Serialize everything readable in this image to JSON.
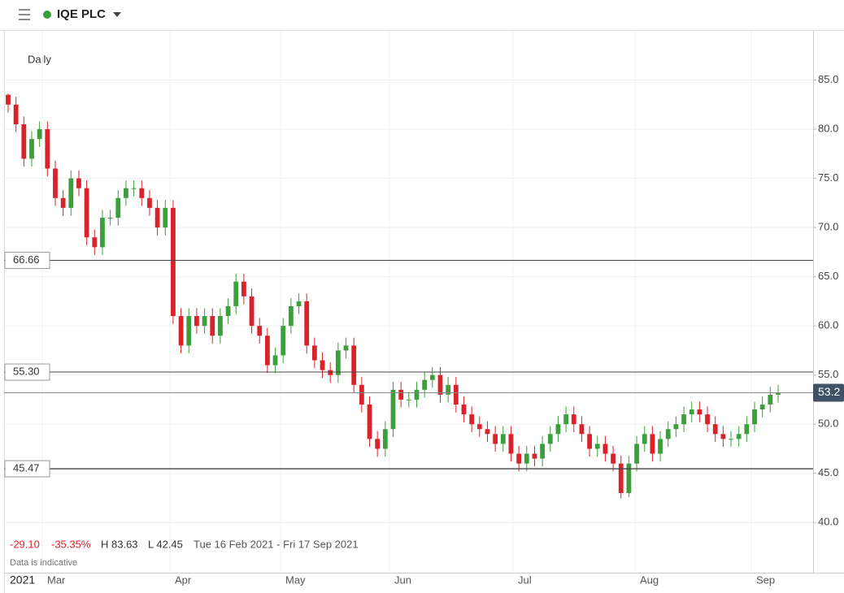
{
  "header": {
    "title": "IQE PLC"
  },
  "chart_data": {
    "type": "candlestick",
    "interval": "Daily",
    "up_color": "#3c9e3c",
    "down_color": "#d9232a",
    "open": [
      83.5,
      82.5,
      80.5,
      77,
      79,
      80,
      76,
      73,
      72,
      75,
      74,
      69,
      68,
      71,
      71,
      73,
      74,
      74,
      73,
      72,
      70,
      72,
      61,
      58,
      61,
      60,
      61,
      59,
      61,
      62,
      64.5,
      63,
      60,
      59,
      56,
      57,
      60,
      62,
      62.5,
      58,
      56.5,
      55.5,
      55,
      57.5,
      58,
      54,
      52,
      48.5,
      47.5,
      49.5,
      53.5,
      52.5,
      52.5,
      53.5,
      54.5,
      55,
      53,
      54,
      52,
      51,
      50,
      49.5,
      49,
      48,
      49,
      47,
      46,
      47,
      46.5,
      48,
      49,
      50,
      51,
      50,
      49,
      47.5,
      48,
      47,
      46,
      43,
      46,
      48,
      49,
      47,
      48.5,
      49.5,
      50,
      51,
      51.5,
      51,
      50,
      49,
      48.5,
      48.5,
      49,
      50,
      51.5,
      52,
      53
    ],
    "high": [
      83.63,
      83.3,
      81.3,
      79.8,
      80.8,
      80.8,
      76.8,
      73.8,
      75.8,
      75.8,
      74.8,
      69.8,
      71.8,
      71.8,
      73.8,
      74.8,
      74.8,
      74.8,
      73.8,
      72.8,
      72.8,
      72.8,
      61.8,
      61.8,
      61.8,
      61.8,
      61.8,
      61.8,
      62.8,
      65.3,
      65.3,
      63.8,
      60.8,
      59.8,
      57.8,
      60.8,
      62.8,
      63.3,
      63.3,
      58.8,
      57.3,
      56.3,
      58.3,
      58.8,
      58.8,
      54.8,
      52.8,
      49.3,
      50.3,
      54.3,
      54.3,
      53.3,
      54.3,
      55.3,
      55.8,
      55.8,
      54.8,
      54.8,
      52.8,
      51.8,
      50.8,
      50.3,
      49.8,
      49.8,
      49.8,
      47.8,
      47.8,
      47.8,
      48.8,
      49.8,
      50.8,
      51.8,
      51.8,
      50.8,
      49.8,
      48.8,
      48.8,
      47.8,
      46.8,
      46.8,
      48.8,
      49.8,
      49.8,
      49.3,
      50.3,
      50.8,
      51.8,
      52.3,
      52.3,
      51.8,
      50.8,
      49.8,
      49.3,
      49.8,
      50.8,
      52.3,
      52.8,
      53.8,
      54
    ],
    "low": [
      81.7,
      79.7,
      76.2,
      76.2,
      78.2,
      75.2,
      72.2,
      71.2,
      71.2,
      73.2,
      68.2,
      67.2,
      67.2,
      70.2,
      70.2,
      72.2,
      73.2,
      72.2,
      71.2,
      69.2,
      69.2,
      60.2,
      57.2,
      57.2,
      59.2,
      59.2,
      58.2,
      58.2,
      60.2,
      61.2,
      62.2,
      59.2,
      58.2,
      55.2,
      55.2,
      56.2,
      59.2,
      61.2,
      57.2,
      55.7,
      54.7,
      54.2,
      54.2,
      56.7,
      53.2,
      51.2,
      47.7,
      46.7,
      46.7,
      48.7,
      51.7,
      51.7,
      51.7,
      52.7,
      53.7,
      52.2,
      52.2,
      51.2,
      50.2,
      49.2,
      48.7,
      48.2,
      47.2,
      47.2,
      46.2,
      45.2,
      45.2,
      45.7,
      45.7,
      47.2,
      48.2,
      49.2,
      49.2,
      48.2,
      46.7,
      46.7,
      46.2,
      45.2,
      42.45,
      42.6,
      45.2,
      47.2,
      46.2,
      46.2,
      47.7,
      48.7,
      49.2,
      50.2,
      50.2,
      49.2,
      48.2,
      47.7,
      47.7,
      47.7,
      48.2,
      49.2,
      50.7,
      51.2,
      52.2
    ],
    "close": [
      82.5,
      80.5,
      77,
      79,
      80,
      76,
      73,
      72,
      75,
      74,
      69,
      68,
      71,
      71,
      73,
      74,
      74,
      73,
      72,
      70,
      72,
      61,
      58,
      61,
      60,
      61,
      59,
      61,
      62,
      64.5,
      63,
      60,
      59,
      56,
      57,
      60,
      62,
      62.5,
      58,
      56.5,
      55.5,
      55,
      57.5,
      58,
      54,
      52,
      48.5,
      47.5,
      49.5,
      53.5,
      52.5,
      52.5,
      53.5,
      54.5,
      55,
      53,
      54,
      52,
      51,
      50,
      49.5,
      49,
      48,
      49,
      47,
      46,
      47,
      46.5,
      48,
      49,
      50,
      51,
      50,
      49,
      47.5,
      48,
      47,
      46,
      43,
      46,
      48,
      49,
      47,
      48.5,
      49.5,
      50,
      51,
      51.5,
      51,
      50,
      49,
      48.5,
      48.5,
      49,
      50,
      51.5,
      52,
      53,
      53.2
    ],
    "ylim": [
      34.9,
      90
    ],
    "yticks": [
      {
        "value": 40,
        "label": "40.0"
      },
      {
        "value": 45,
        "label": "45.0"
      },
      {
        "value": 50,
        "label": "50.0"
      },
      {
        "value": 55,
        "label": "55.0"
      },
      {
        "value": 60,
        "label": "60.0"
      },
      {
        "value": 65,
        "label": "65.0"
      },
      {
        "value": 70,
        "label": "70.0"
      },
      {
        "value": 75,
        "label": "75.0"
      },
      {
        "value": 80,
        "label": "80.0"
      },
      {
        "value": 85,
        "label": "85.0"
      }
    ],
    "x_axis_labels": [
      "2021",
      "Mar",
      "Apr",
      "May",
      "Jun",
      "Jul",
      "Aug",
      "Sep"
    ],
    "levels": [
      {
        "value": 66.66,
        "label": "66.66"
      },
      {
        "value": 55.3,
        "label": "55.30"
      },
      {
        "value": 45.47,
        "label": "45.47"
      }
    ],
    "last_price": {
      "value": 53.2,
      "label": "53.2"
    },
    "stats": {
      "change": "-29.10",
      "change_pct": "-35.35%",
      "high": "H 83.63",
      "low": "L 42.45",
      "range": "Tue 16 Feb 2021 - Fri 17 Sep 2021"
    },
    "note": "Data is indicative"
  }
}
